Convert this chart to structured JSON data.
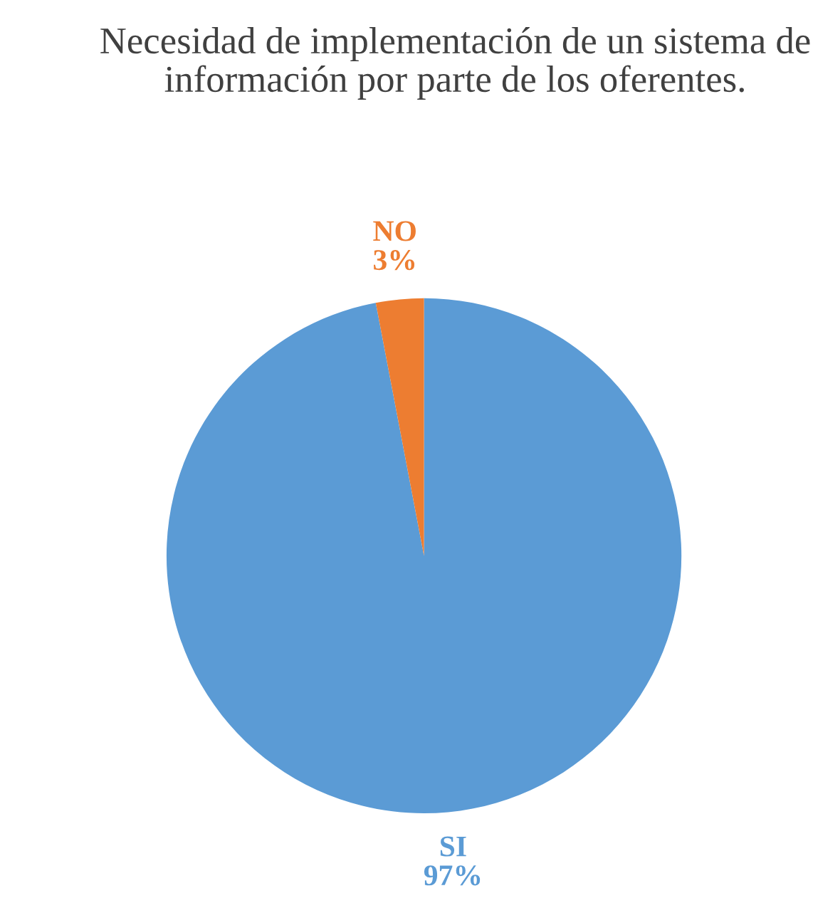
{
  "chart_data": {
    "type": "pie",
    "title": "Necesidad de implementación de un sistema de información por parte de los oferentes.",
    "categories": [
      "SI",
      "NO"
    ],
    "values": [
      97,
      3
    ],
    "colors": [
      "#5b9bd5",
      "#ed7d31"
    ],
    "value_labels": [
      "97%",
      "3%"
    ],
    "legend": false
  }
}
